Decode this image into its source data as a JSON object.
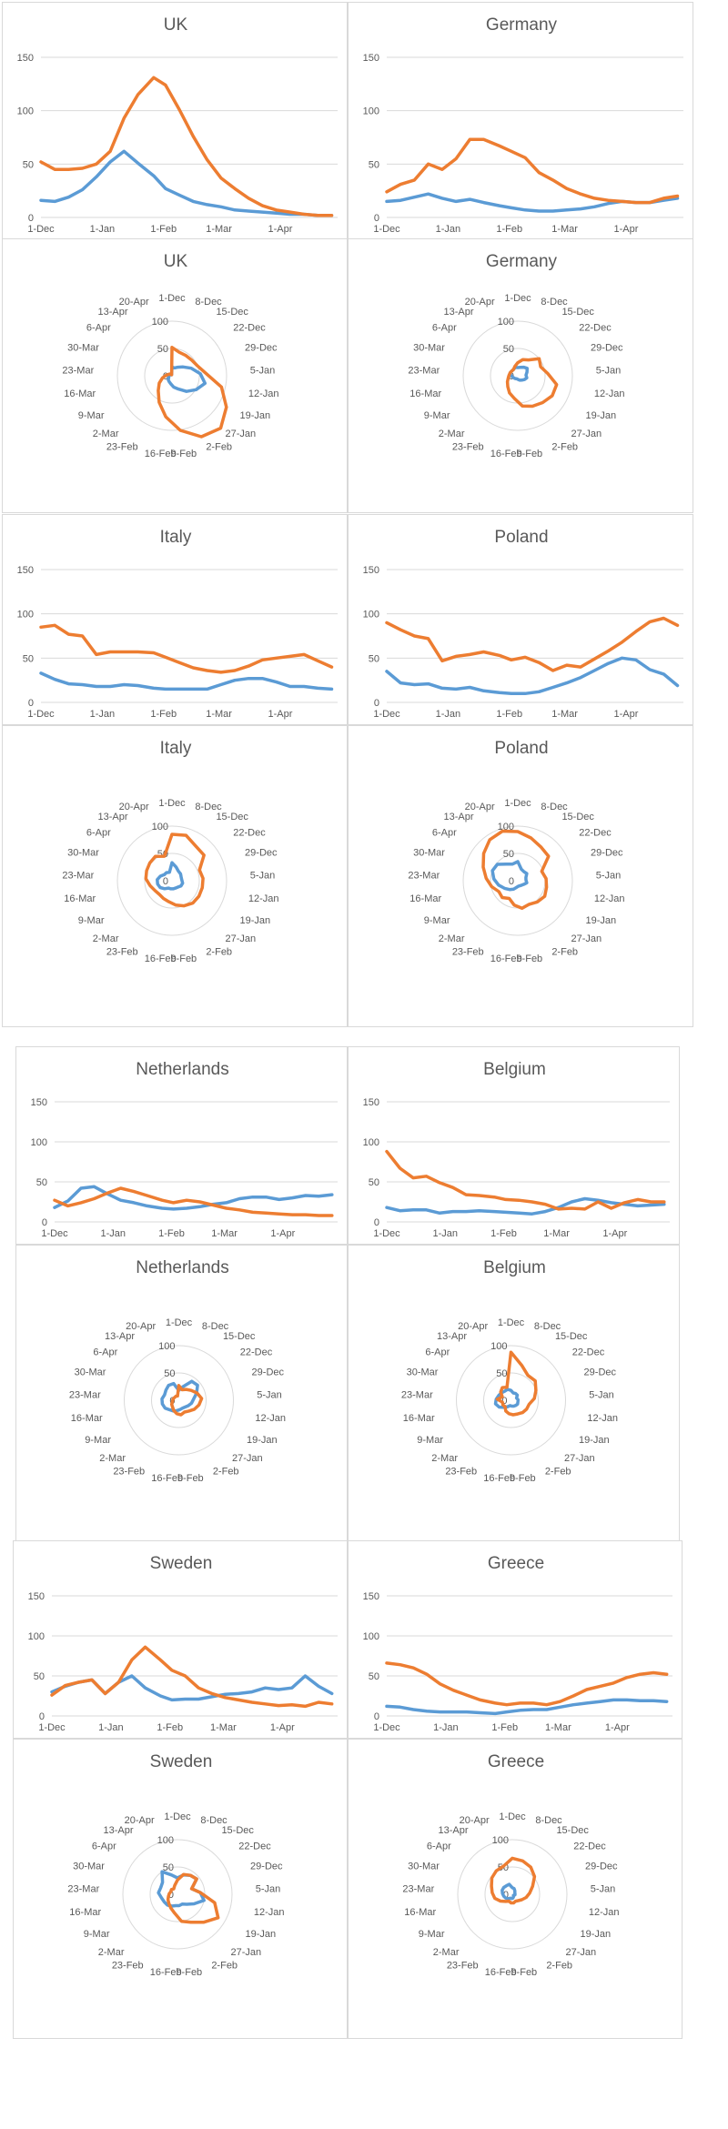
{
  "colors": {
    "series_a": "#5b9bd5",
    "series_b": "#ed7d31",
    "grid": "#d9d9d9",
    "axis_text": "#595959",
    "title": "#595959"
  },
  "line_axis": {
    "yticks": [
      0,
      50,
      100,
      150
    ],
    "ylim": [
      0,
      150
    ],
    "xticks": [
      "1-Dec",
      "1-Jan",
      "1-Feb",
      "1-Mar",
      "1-Apr"
    ],
    "xtick_days": [
      0,
      31,
      62,
      90,
      121
    ],
    "xrange_days": [
      0,
      150
    ]
  },
  "radar_axis": {
    "spokes": [
      "1-Dec",
      "8-Dec",
      "15-Dec",
      "22-Dec",
      "29-Dec",
      "5-Jan",
      "12-Jan",
      "19-Jan",
      "27-Jan",
      "2-Feb",
      "9-Feb",
      "16-Feb",
      "23-Feb",
      "2-Mar",
      "9-Mar",
      "16-Mar",
      "23-Mar",
      "30-Mar",
      "6-Apr",
      "13-Apr",
      "20-Apr"
    ],
    "rings": [
      0,
      50,
      100
    ],
    "rmax": 100
  },
  "chart_data": [
    {
      "type": "line",
      "title": "UK",
      "x_days": [
        0,
        7,
        14,
        21,
        28,
        35,
        42,
        49,
        57,
        63,
        70,
        77,
        84,
        91,
        98,
        105,
        112,
        119,
        126,
        133,
        140,
        147
      ],
      "series": [
        {
          "values": [
            16,
            15,
            19,
            26,
            38,
            52,
            62,
            51,
            39,
            27,
            21,
            15,
            12,
            10,
            7,
            6,
            5,
            4,
            3,
            3,
            2,
            2
          ]
        },
        {
          "values": [
            52,
            45,
            45,
            46,
            50,
            62,
            93,
            115,
            131,
            124,
            101,
            76,
            54,
            37,
            27,
            18,
            11,
            7,
            5,
            3,
            2,
            2
          ]
        }
      ]
    },
    {
      "type": "line",
      "title": "Germany",
      "x_days": [
        0,
        7,
        14,
        21,
        28,
        35,
        42,
        49,
        57,
        63,
        70,
        77,
        84,
        91,
        98,
        105,
        112,
        119,
        126,
        133,
        140,
        147
      ],
      "series": [
        {
          "values": [
            15,
            16,
            19,
            22,
            18,
            15,
            17,
            14,
            11,
            9,
            7,
            6,
            6,
            7,
            8,
            10,
            13,
            15,
            14,
            14,
            16,
            18
          ]
        },
        {
          "values": [
            24,
            31,
            35,
            50,
            45,
            55,
            73,
            73,
            67,
            62,
            56,
            42,
            35,
            27,
            22,
            18,
            16,
            15,
            14,
            14,
            18,
            20
          ]
        }
      ]
    },
    {
      "type": "radar",
      "title": "UK",
      "series": [
        {
          "values": [
            16,
            15,
            19,
            26,
            38,
            52,
            62,
            51,
            39,
            27,
            21,
            15,
            12,
            10,
            7,
            6,
            5,
            4,
            3,
            3,
            2
          ]
        },
        {
          "values": [
            52,
            45,
            45,
            46,
            50,
            62,
            93,
            115,
            131,
            124,
            101,
            76,
            54,
            37,
            27,
            18,
            11,
            7,
            5,
            3,
            2
          ]
        }
      ]
    },
    {
      "type": "radar",
      "title": "Germany",
      "series": [
        {
          "values": [
            15,
            16,
            19,
            22,
            18,
            15,
            17,
            14,
            11,
            9,
            7,
            6,
            6,
            7,
            8,
            10,
            13,
            15,
            14,
            14,
            16
          ]
        },
        {
          "values": [
            24,
            31,
            35,
            50,
            45,
            55,
            73,
            73,
            67,
            62,
            56,
            42,
            35,
            27,
            22,
            18,
            16,
            15,
            14,
            14,
            18
          ]
        }
      ]
    },
    {
      "type": "line",
      "title": "Italy",
      "x_days": [
        0,
        7,
        14,
        21,
        28,
        35,
        42,
        49,
        57,
        63,
        70,
        77,
        84,
        91,
        98,
        105,
        112,
        119,
        126,
        133,
        140,
        147
      ],
      "series": [
        {
          "values": [
            33,
            26,
            21,
            20,
            18,
            18,
            20,
            19,
            16,
            15,
            15,
            15,
            15,
            20,
            25,
            27,
            27,
            23,
            18,
            18,
            16,
            15
          ]
        },
        {
          "values": [
            85,
            87,
            77,
            75,
            54,
            57,
            57,
            57,
            56,
            51,
            45,
            39,
            36,
            34,
            36,
            41,
            48,
            50,
            52,
            54,
            47,
            40
          ]
        }
      ]
    },
    {
      "type": "line",
      "title": "Poland",
      "x_days": [
        0,
        7,
        14,
        21,
        28,
        35,
        42,
        49,
        57,
        63,
        70,
        77,
        84,
        91,
        98,
        105,
        112,
        119,
        126,
        133,
        140,
        147
      ],
      "series": [
        {
          "values": [
            35,
            22,
            20,
            21,
            16,
            15,
            17,
            13,
            11,
            10,
            10,
            12,
            17,
            22,
            28,
            36,
            44,
            50,
            48,
            37,
            32,
            19
          ]
        },
        {
          "values": [
            90,
            82,
            75,
            72,
            47,
            52,
            54,
            57,
            53,
            48,
            51,
            45,
            36,
            42,
            40,
            49,
            58,
            68,
            80,
            91,
            95,
            87
          ]
        }
      ]
    },
    {
      "type": "radar",
      "title": "Italy",
      "series": [
        {
          "values": [
            33,
            26,
            21,
            20,
            18,
            18,
            20,
            19,
            16,
            15,
            15,
            15,
            15,
            20,
            25,
            27,
            27,
            23,
            18,
            18,
            16
          ]
        },
        {
          "values": [
            85,
            87,
            77,
            75,
            54,
            57,
            57,
            57,
            56,
            51,
            45,
            39,
            36,
            34,
            36,
            41,
            48,
            50,
            52,
            54,
            47
          ]
        }
      ]
    },
    {
      "type": "radar",
      "title": "Poland",
      "series": [
        {
          "values": [
            35,
            22,
            20,
            21,
            16,
            15,
            17,
            13,
            11,
            10,
            10,
            12,
            17,
            22,
            28,
            36,
            44,
            50,
            48,
            37,
            32
          ]
        },
        {
          "values": [
            90,
            82,
            75,
            72,
            47,
            52,
            54,
            57,
            53,
            48,
            51,
            45,
            36,
            42,
            40,
            49,
            58,
            68,
            80,
            91,
            95
          ]
        }
      ]
    },
    {
      "type": "line",
      "title": "Netherlands",
      "x_days": [
        0,
        7,
        14,
        21,
        28,
        35,
        42,
        49,
        57,
        63,
        70,
        77,
        84,
        91,
        98,
        105,
        112,
        119,
        126,
        133,
        140,
        147
      ],
      "series": [
        {
          "values": [
            18,
            26,
            42,
            44,
            35,
            27,
            24,
            20,
            17,
            16,
            17,
            19,
            22,
            24,
            29,
            31,
            31,
            28,
            30,
            33,
            32,
            34
          ]
        },
        {
          "values": [
            27,
            20,
            24,
            29,
            36,
            42,
            38,
            33,
            27,
            24,
            27,
            25,
            21,
            17,
            15,
            12,
            11,
            10,
            9,
            9,
            8,
            8
          ]
        }
      ]
    },
    {
      "type": "line",
      "title": "Belgium",
      "x_days": [
        0,
        7,
        14,
        21,
        28,
        35,
        42,
        49,
        57,
        63,
        70,
        77,
        84,
        91,
        98,
        105,
        112,
        119,
        126,
        133,
        140,
        147
      ],
      "series": [
        {
          "values": [
            18,
            14,
            15,
            15,
            11,
            13,
            13,
            14,
            13,
            12,
            11,
            10,
            13,
            18,
            25,
            29,
            27,
            24,
            22,
            20,
            21,
            22
          ]
        },
        {
          "values": [
            88,
            67,
            55,
            57,
            49,
            43,
            34,
            33,
            31,
            28,
            27,
            25,
            22,
            16,
            17,
            16,
            25,
            17,
            24,
            28,
            25,
            25
          ]
        }
      ]
    },
    {
      "type": "radar",
      "title": "Netherlands",
      "series": [
        {
          "values": [
            18,
            26,
            42,
            44,
            35,
            27,
            24,
            20,
            17,
            16,
            17,
            19,
            22,
            24,
            29,
            31,
            31,
            28,
            30,
            33,
            32
          ]
        },
        {
          "values": [
            27,
            20,
            24,
            29,
            36,
            42,
            38,
            33,
            27,
            24,
            27,
            25,
            21,
            17,
            15,
            12,
            11,
            10,
            9,
            9,
            8
          ]
        }
      ]
    },
    {
      "type": "radar",
      "title": "Belgium",
      "series": [
        {
          "values": [
            18,
            14,
            15,
            15,
            11,
            13,
            13,
            14,
            13,
            12,
            11,
            10,
            13,
            18,
            25,
            29,
            27,
            24,
            22,
            20,
            21
          ]
        },
        {
          "values": [
            88,
            67,
            55,
            57,
            49,
            43,
            34,
            33,
            31,
            28,
            27,
            25,
            22,
            16,
            17,
            16,
            25,
            17,
            24,
            28,
            25
          ]
        }
      ]
    },
    {
      "type": "line",
      "title": "Sweden",
      "x_days": [
        0,
        7,
        14,
        21,
        28,
        35,
        42,
        49,
        57,
        63,
        70,
        77,
        84,
        91,
        98,
        105,
        112,
        119,
        126,
        133,
        140,
        147
      ],
      "series": [
        {
          "values": [
            30,
            37,
            42,
            45,
            28,
            42,
            50,
            35,
            25,
            20,
            21,
            21,
            24,
            27,
            28,
            30,
            35,
            33,
            35,
            50,
            37,
            28
          ]
        },
        {
          "values": [
            26,
            38,
            42,
            45,
            28,
            42,
            70,
            86,
            70,
            57,
            50,
            35,
            28,
            23,
            20,
            17,
            15,
            13,
            14,
            12,
            17,
            15
          ]
        }
      ]
    },
    {
      "type": "line",
      "title": "Greece",
      "x_days": [
        0,
        7,
        14,
        21,
        28,
        35,
        42,
        49,
        57,
        63,
        70,
        77,
        84,
        91,
        98,
        105,
        112,
        119,
        126,
        133,
        140,
        147
      ],
      "series": [
        {
          "values": [
            12,
            11,
            8,
            6,
            5,
            5,
            5,
            4,
            3,
            5,
            7,
            8,
            8,
            11,
            14,
            16,
            18,
            20,
            20,
            19,
            19,
            18
          ]
        },
        {
          "values": [
            66,
            64,
            60,
            52,
            40,
            32,
            26,
            20,
            16,
            14,
            16,
            16,
            14,
            18,
            25,
            33,
            37,
            41,
            48,
            52,
            54,
            52
          ]
        }
      ]
    },
    {
      "type": "radar",
      "title": "Sweden",
      "series": [
        {
          "values": [
            30,
            37,
            42,
            45,
            28,
            42,
            50,
            35,
            25,
            20,
            21,
            21,
            24,
            27,
            28,
            30,
            35,
            33,
            35,
            50,
            37
          ]
        },
        {
          "values": [
            26,
            38,
            42,
            45,
            28,
            42,
            70,
            86,
            70,
            57,
            50,
            35,
            28,
            23,
            20,
            17,
            15,
            13,
            14,
            12,
            17
          ]
        }
      ]
    },
    {
      "type": "radar",
      "title": "Greece",
      "series": [
        {
          "values": [
            12,
            11,
            8,
            6,
            5,
            5,
            5,
            4,
            3,
            5,
            7,
            8,
            8,
            11,
            14,
            16,
            18,
            20,
            20,
            19,
            19
          ]
        },
        {
          "values": [
            66,
            64,
            60,
            52,
            40,
            32,
            26,
            20,
            16,
            14,
            16,
            16,
            14,
            18,
            25,
            33,
            37,
            41,
            48,
            52,
            54
          ]
        }
      ]
    }
  ]
}
